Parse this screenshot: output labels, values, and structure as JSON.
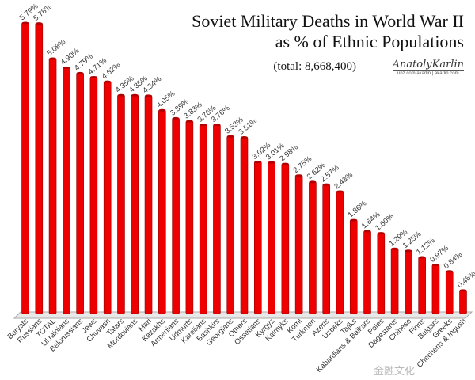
{
  "chart_data": {
    "type": "bar",
    "title": "Soviet Military Deaths in World War II",
    "title_line2": "as % of Ethnic Populations",
    "subtitle": "(total: 8,668,400)",
    "categories": [
      "Buryats",
      "Russians",
      "TOTAL",
      "Ukrainians",
      "Belorussians",
      "Jews",
      "Chuvash",
      "Tatars",
      "Mordovians",
      "Mari",
      "Kazakhs",
      "Armenians",
      "Udmurts",
      "Karelians",
      "Bashkirs",
      "Georgians",
      "Others",
      "Ossetians",
      "Kyrgyz",
      "Kalmyks",
      "Komi",
      "Turkmen",
      "Azeris",
      "Uzbeks",
      "Tajiks",
      "Kabardians & Balkars",
      "Poles",
      "Dagestanis",
      "Chinese",
      "Finns",
      "Bulgars",
      "Greeks",
      "Chechens & Ingush"
    ],
    "values": [
      5.79,
      5.78,
      5.08,
      4.9,
      4.79,
      4.71,
      4.62,
      4.35,
      4.35,
      4.34,
      4.05,
      3.89,
      3.83,
      3.76,
      3.76,
      3.53,
      3.51,
      3.02,
      3.01,
      2.98,
      2.75,
      2.62,
      2.57,
      2.43,
      1.86,
      1.64,
      1.6,
      1.29,
      1.25,
      1.12,
      0.97,
      0.84,
      0.46
    ],
    "data_labels": [
      "5.79%",
      "5.78%",
      "5.08%",
      "4.90%",
      "4.79%",
      "4.71%",
      "4.62%",
      "4.35%",
      "4.35%",
      "4.34%",
      "4.05%",
      "3.89%",
      "3.83%",
      "3.76%",
      "3.76%",
      "3.53%",
      "3.51%",
      "3.02%",
      "3.01%",
      "2.98%",
      "2.75%",
      "2.62%",
      "2.57%",
      "2.43%",
      "1.86%",
      "1.64%",
      "1.60%",
      "1.29%",
      "1.25%",
      "1.12%",
      "0.97%",
      "0.84%",
      "0.46%"
    ],
    "xlabel": "",
    "ylabel": "",
    "ylim": [
      0,
      5.79
    ],
    "grid": false,
    "legend": "none",
    "bar_color": "#ee0000"
  },
  "credit": {
    "signature": "AnatolyKarlin",
    "url": "unz.com/akarlin | akarlin.com"
  },
  "watermark": "金融文化"
}
